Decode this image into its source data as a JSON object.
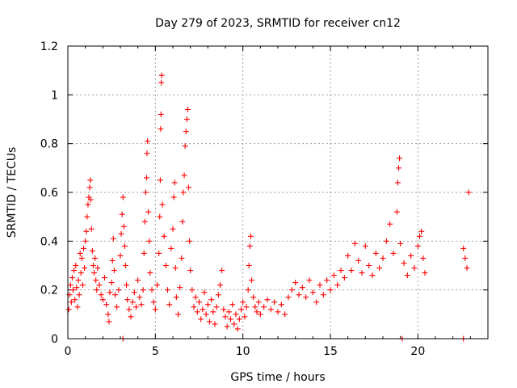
{
  "chart_data": {
    "type": "scatter",
    "title": "Day 279 of 2023, SRMTID for receiver cn12",
    "xlabel": "GPS time / hours",
    "ylabel": "SRMTID / TECUs",
    "xlim": [
      0,
      24
    ],
    "ylim": [
      0,
      1.2
    ],
    "x_ticks": [
      0,
      5,
      10,
      15,
      20
    ],
    "x_tick_labels": [
      "0",
      "5",
      "10",
      "15",
      "20"
    ],
    "y_ticks": [
      0,
      0.2,
      0.4,
      0.6,
      0.8,
      1.0,
      1.2
    ],
    "y_tick_labels": [
      "0",
      "0.2",
      "0.4",
      "0.6",
      "0.8",
      "1",
      "1.2"
    ],
    "grid": true,
    "marker": "+",
    "color": "#ff0000",
    "series": [
      {
        "name": "SRMTID",
        "points": [
          [
            0.05,
            0.12
          ],
          [
            0.1,
            0.18
          ],
          [
            0.15,
            0.22
          ],
          [
            0.2,
            0.15
          ],
          [
            0.25,
            0.25
          ],
          [
            0.3,
            0.2
          ],
          [
            0.35,
            0.28
          ],
          [
            0.4,
            0.16
          ],
          [
            0.45,
            0.3
          ],
          [
            0.5,
            0.21
          ],
          [
            0.55,
            0.13
          ],
          [
            0.6,
            0.24
          ],
          [
            0.65,
            0.18
          ],
          [
            0.7,
            0.35
          ],
          [
            0.75,
            0.27
          ],
          [
            0.8,
            0.33
          ],
          [
            0.85,
            0.22
          ],
          [
            0.9,
            0.37
          ],
          [
            0.95,
            0.29
          ],
          [
            1.0,
            0.4
          ],
          [
            1.05,
            0.44
          ],
          [
            1.1,
            0.5
          ],
          [
            1.15,
            0.55
          ],
          [
            1.2,
            0.58
          ],
          [
            1.25,
            0.62
          ],
          [
            1.28,
            0.65
          ],
          [
            1.3,
            0.57
          ],
          [
            1.35,
            0.45
          ],
          [
            1.4,
            0.36
          ],
          [
            1.45,
            0.3
          ],
          [
            1.5,
            0.27
          ],
          [
            1.55,
            0.33
          ],
          [
            1.6,
            0.24
          ],
          [
            1.65,
            0.2
          ],
          [
            1.7,
            0.29
          ],
          [
            1.8,
            0.22
          ],
          [
            1.9,
            0.18
          ],
          [
            2.0,
            0.16
          ],
          [
            2.1,
            0.25
          ],
          [
            2.2,
            0.14
          ],
          [
            2.3,
            0.1
          ],
          [
            2.35,
            0.07
          ],
          [
            2.4,
            0.19
          ],
          [
            2.5,
            0.23
          ],
          [
            2.55,
            0.32
          ],
          [
            2.6,
            0.41
          ],
          [
            2.65,
            0.28
          ],
          [
            2.7,
            0.18
          ],
          [
            2.8,
            0.13
          ],
          [
            2.9,
            0.2
          ],
          [
            3.0,
            0.34
          ],
          [
            3.05,
            0.43
          ],
          [
            3.1,
            0.51
          ],
          [
            3.15,
            0.58
          ],
          [
            3.2,
            0.46
          ],
          [
            3.25,
            0.38
          ],
          [
            3.3,
            0.3
          ],
          [
            3.35,
            0.22
          ],
          [
            3.4,
            0.16
          ],
          [
            3.5,
            0.12
          ],
          [
            3.6,
            0.09
          ],
          [
            3.7,
            0.15
          ],
          [
            3.8,
            0.19
          ],
          [
            3.9,
            0.13
          ],
          [
            4.0,
            0.24
          ],
          [
            4.1,
            0.17
          ],
          [
            4.2,
            0.14
          ],
          [
            4.3,
            0.2
          ],
          [
            4.35,
            0.35
          ],
          [
            4.4,
            0.48
          ],
          [
            4.45,
            0.6
          ],
          [
            4.5,
            0.66
          ],
          [
            4.52,
            0.76
          ],
          [
            4.55,
            0.81
          ],
          [
            4.6,
            0.52
          ],
          [
            4.65,
            0.4
          ],
          [
            4.7,
            0.27
          ],
          [
            4.8,
            0.2
          ],
          [
            4.9,
            0.15
          ],
          [
            5.0,
            0.12
          ],
          [
            5.1,
            0.22
          ],
          [
            5.2,
            0.35
          ],
          [
            5.25,
            0.5
          ],
          [
            5.28,
            0.65
          ],
          [
            5.3,
            0.86
          ],
          [
            5.32,
            0.92
          ],
          [
            5.34,
            1.05
          ],
          [
            5.36,
            1.08
          ],
          [
            5.4,
            0.55
          ],
          [
            5.5,
            0.42
          ],
          [
            5.6,
            0.3
          ],
          [
            5.7,
            0.2
          ],
          [
            5.8,
            0.14
          ],
          [
            5.9,
            0.37
          ],
          [
            6.0,
            0.45
          ],
          [
            6.05,
            0.58
          ],
          [
            6.1,
            0.64
          ],
          [
            6.15,
            0.29
          ],
          [
            6.2,
            0.17
          ],
          [
            6.3,
            0.1
          ],
          [
            6.4,
            0.21
          ],
          [
            6.5,
            0.33
          ],
          [
            6.55,
            0.48
          ],
          [
            6.6,
            0.6
          ],
          [
            6.65,
            0.67
          ],
          [
            6.7,
            0.79
          ],
          [
            6.75,
            0.85
          ],
          [
            6.8,
            0.9
          ],
          [
            6.85,
            0.94
          ],
          [
            6.9,
            0.62
          ],
          [
            6.95,
            0.4
          ],
          [
            7.0,
            0.28
          ],
          [
            7.1,
            0.2
          ],
          [
            7.2,
            0.13
          ],
          [
            7.3,
            0.17
          ],
          [
            7.4,
            0.11
          ],
          [
            7.5,
            0.15
          ],
          [
            7.6,
            0.08
          ],
          [
            7.7,
            0.12
          ],
          [
            7.8,
            0.19
          ],
          [
            7.9,
            0.1
          ],
          [
            8.0,
            0.14
          ],
          [
            8.1,
            0.07
          ],
          [
            8.2,
            0.16
          ],
          [
            8.3,
            0.11
          ],
          [
            8.4,
            0.06
          ],
          [
            8.5,
            0.13
          ],
          [
            8.6,
            0.18
          ],
          [
            8.7,
            0.22
          ],
          [
            8.8,
            0.28
          ],
          [
            8.9,
            0.12
          ],
          [
            9.0,
            0.09
          ],
          [
            9.1,
            0.05
          ],
          [
            9.2,
            0.11
          ],
          [
            9.3,
            0.08
          ],
          [
            9.4,
            0.14
          ],
          [
            9.5,
            0.06
          ],
          [
            9.6,
            0.1
          ],
          [
            9.7,
            0.04
          ],
          [
            9.8,
            0.08
          ],
          [
            9.9,
            0.12
          ],
          [
            10.0,
            0.15
          ],
          [
            10.1,
            0.09
          ],
          [
            10.2,
            0.13
          ],
          [
            10.3,
            0.2
          ],
          [
            10.35,
            0.3
          ],
          [
            10.4,
            0.38
          ],
          [
            10.45,
            0.42
          ],
          [
            10.5,
            0.24
          ],
          [
            10.6,
            0.17
          ],
          [
            10.7,
            0.13
          ],
          [
            10.8,
            0.11
          ],
          [
            10.9,
            0.15
          ],
          [
            11.0,
            0.1
          ],
          [
            11.2,
            0.13
          ],
          [
            11.4,
            0.16
          ],
          [
            11.6,
            0.12
          ],
          [
            11.8,
            0.15
          ],
          [
            12.0,
            0.11
          ],
          [
            12.2,
            0.14
          ],
          [
            12.4,
            0.1
          ],
          [
            12.6,
            0.17
          ],
          [
            12.8,
            0.2
          ],
          [
            13.0,
            0.23
          ],
          [
            13.2,
            0.18
          ],
          [
            13.4,
            0.21
          ],
          [
            13.6,
            0.17
          ],
          [
            13.8,
            0.24
          ],
          [
            14.0,
            0.19
          ],
          [
            14.2,
            0.15
          ],
          [
            14.4,
            0.22
          ],
          [
            14.6,
            0.18
          ],
          [
            14.8,
            0.24
          ],
          [
            15.0,
            0.2
          ],
          [
            15.2,
            0.26
          ],
          [
            15.4,
            0.22
          ],
          [
            15.6,
            0.28
          ],
          [
            15.8,
            0.25
          ],
          [
            16.0,
            0.34
          ],
          [
            16.2,
            0.28
          ],
          [
            16.4,
            0.39
          ],
          [
            16.6,
            0.32
          ],
          [
            16.8,
            0.27
          ],
          [
            17.0,
            0.38
          ],
          [
            17.2,
            0.3
          ],
          [
            17.4,
            0.26
          ],
          [
            17.6,
            0.35
          ],
          [
            17.8,
            0.29
          ],
          [
            18.0,
            0.33
          ],
          [
            18.2,
            0.4
          ],
          [
            18.4,
            0.47
          ],
          [
            18.6,
            0.35
          ],
          [
            18.8,
            0.52
          ],
          [
            18.85,
            0.64
          ],
          [
            18.9,
            0.7
          ],
          [
            18.95,
            0.74
          ],
          [
            19.0,
            0.39
          ],
          [
            19.2,
            0.31
          ],
          [
            19.4,
            0.26
          ],
          [
            19.6,
            0.34
          ],
          [
            19.8,
            0.29
          ],
          [
            20.0,
            0.38
          ],
          [
            20.1,
            0.42
          ],
          [
            20.2,
            0.44
          ],
          [
            20.3,
            0.33
          ],
          [
            20.4,
            0.27
          ],
          [
            22.6,
            0.37
          ],
          [
            22.7,
            0.33
          ],
          [
            22.8,
            0.29
          ],
          [
            22.9,
            0.6
          ],
          [
            3.15,
            0.0
          ],
          [
            19.1,
            0.0
          ],
          [
            22.6,
            0.0
          ]
        ]
      }
    ]
  }
}
